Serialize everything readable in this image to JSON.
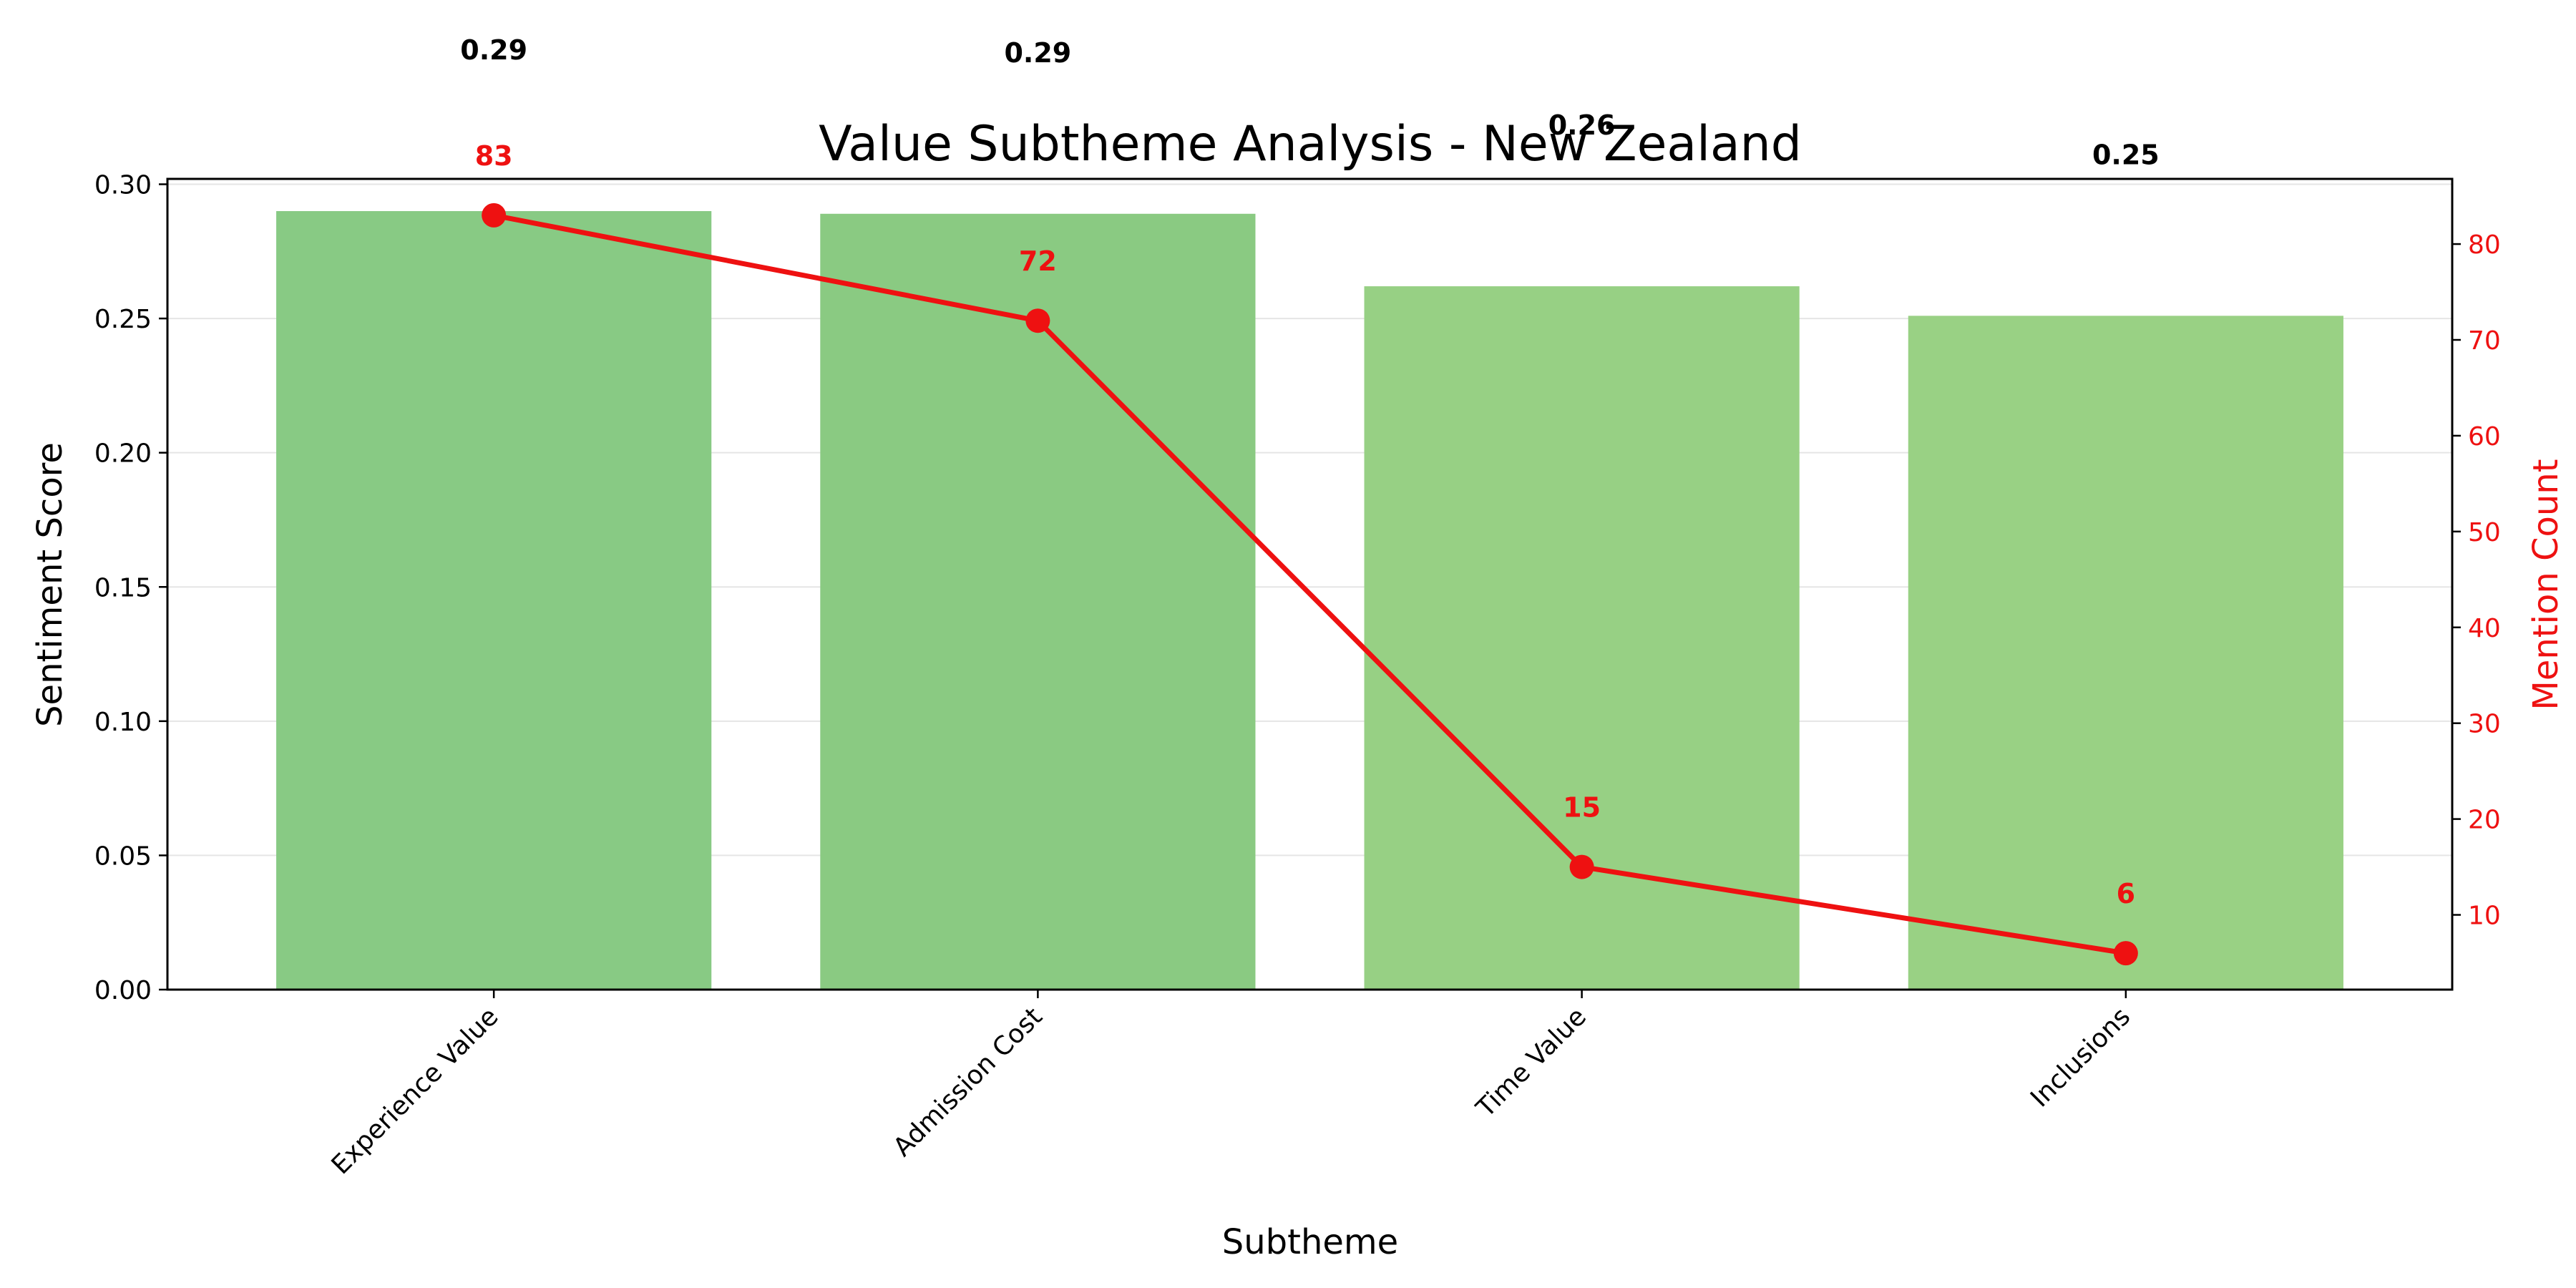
{
  "chart_data": {
    "type": "bar",
    "title": "Value Subtheme Analysis - New Zealand",
    "xlabel": "Subtheme",
    "ylabel": "Sentiment Score",
    "y2label": "Mention Count",
    "categories": [
      "Experience Value",
      "Admission Cost",
      "Time Value",
      "Inclusions"
    ],
    "series": [
      {
        "type": "bar",
        "axis": "left",
        "values": [
          0.29,
          0.289,
          0.262,
          0.251
        ],
        "value_labels": [
          "0.29",
          "0.29",
          "0.26",
          "0.25"
        ],
        "colors": [
          "#88ca84",
          "#8aca82",
          "#97d084",
          "#99d184"
        ]
      },
      {
        "type": "line",
        "axis": "right",
        "values": [
          83,
          72,
          15,
          6
        ],
        "value_labels": [
          "83",
          "72",
          "15",
          "6"
        ],
        "color": "#ee1111"
      }
    ],
    "ylim": [
      0,
      0.302
    ],
    "y2lim": [
      2.2,
      86.8
    ],
    "yticks": [
      "0.00",
      "0.05",
      "0.10",
      "0.15",
      "0.20",
      "0.25",
      "0.30"
    ],
    "y2ticks": [
      "10",
      "20",
      "30",
      "40",
      "50",
      "60",
      "70",
      "80"
    ],
    "grid": true,
    "colors": {
      "axis": "#000000",
      "grid": "#e5e5e5",
      "right_axis": "#ee1111"
    }
  }
}
